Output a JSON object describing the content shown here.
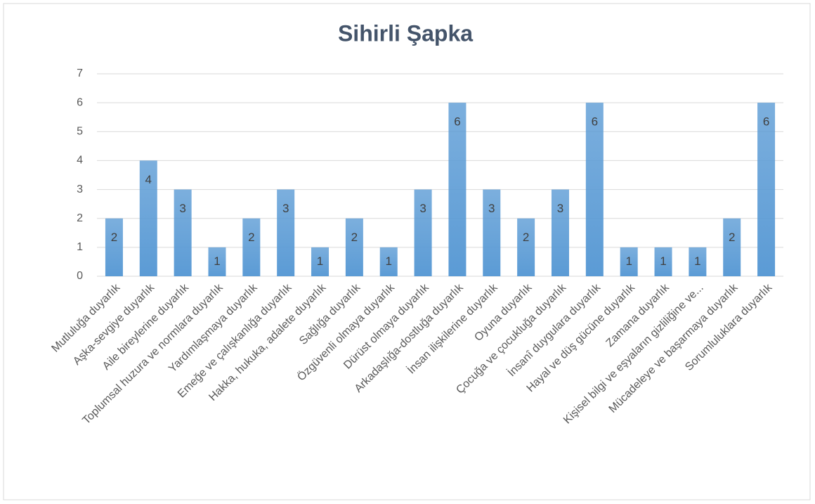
{
  "chart_data": {
    "type": "bar",
    "title": "Sihirli Şapka",
    "categories": [
      "Mutluluğa duyarlık",
      "Aşka-sevgiye duyarlık",
      "Aile bireylerine duyarlık",
      "Toplumsal huzura ve normlara duyarlık",
      "Yardımlaşmaya duyarlık",
      "Emeğe ve çalışkanlığa duyarlık",
      "Hakka, hukuka, adalete duyarlık",
      "Sağlığa duyarlık",
      "Özgüvenli olmaya duyarlık",
      "Dürüst olmaya duyarlık",
      "Arkadaşlığa-dostluğa duyarlık",
      "İnsan ilişkilerine duyarlık",
      "Oyuna duyarlık",
      "Çocuğa ve çocukluğa duyarlık",
      "İnsanî duygulara duyarlık",
      "Hayal ve düş gücüne duyarlık",
      "Zamana duyarlık",
      "Kişisel bilgi ve eşyaların gizliliğine ve...",
      "Mücadeleye ve başarmaya duyarlık",
      "Sorumluluklara duyarlık"
    ],
    "values": [
      2,
      4,
      3,
      1,
      2,
      3,
      1,
      2,
      1,
      3,
      6,
      3,
      2,
      3,
      6,
      1,
      1,
      1,
      2,
      6
    ],
    "color": "#5b9bd5",
    "ylim": [
      0,
      7
    ],
    "yticks": [
      0,
      1,
      2,
      3,
      4,
      5,
      6,
      7
    ],
    "grid": true
  }
}
